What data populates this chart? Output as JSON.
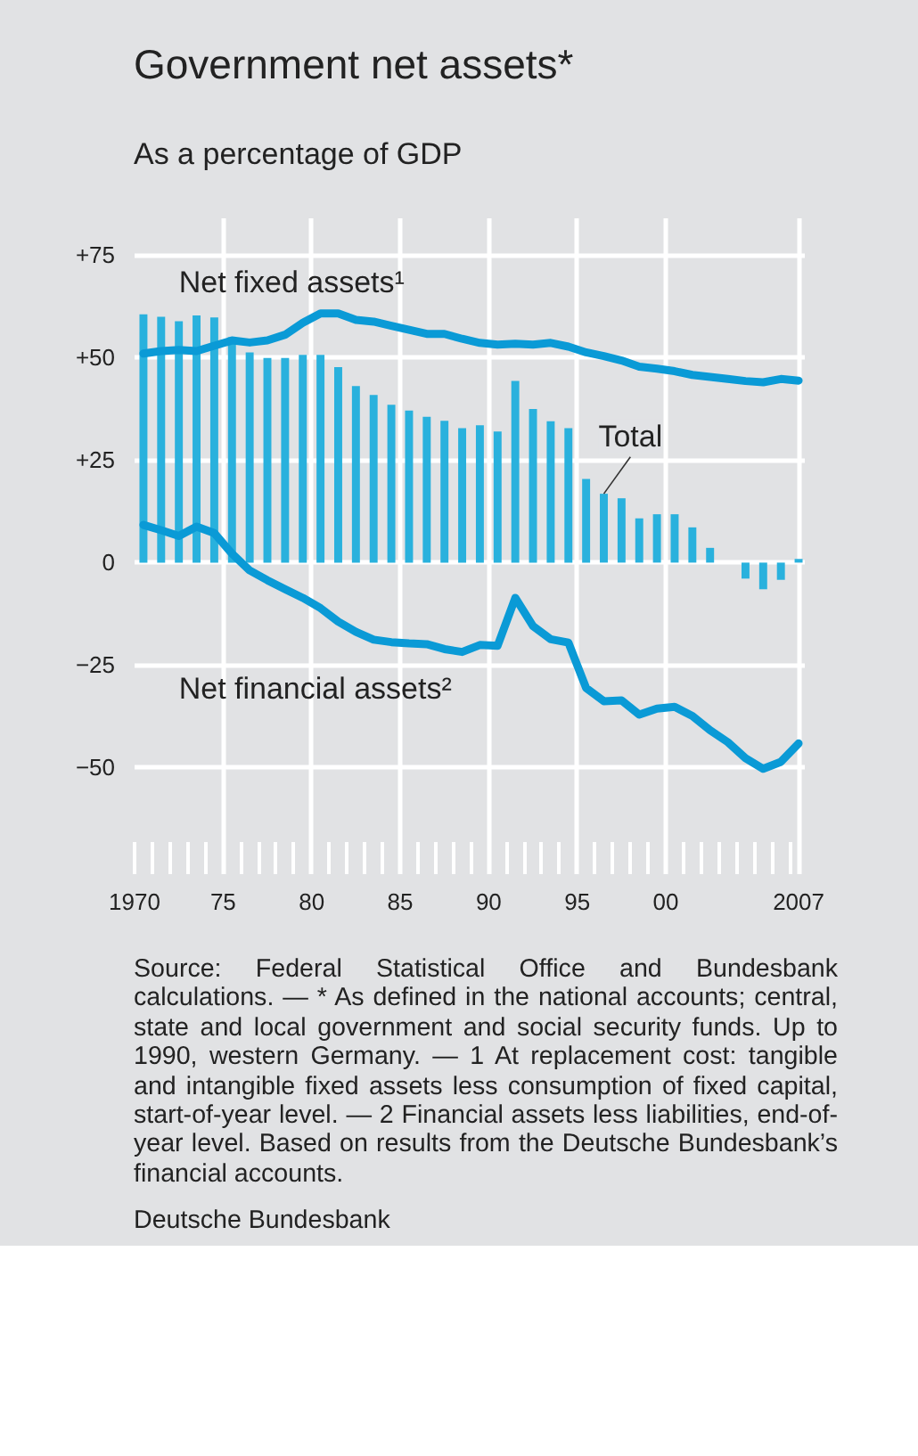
{
  "chart_data": {
    "type": "bar",
    "title": "Government net assets*",
    "subtitle": "As a percentage of GDP",
    "x": [
      1970.5,
      1971.5,
      1972.5,
      1973.5,
      1974.5,
      1975.5,
      1976.5,
      1977.5,
      1978.5,
      1979.5,
      1980.5,
      1981.5,
      1982.5,
      1983.5,
      1984.5,
      1985.5,
      1986.5,
      1987.5,
      1988.5,
      1989.5,
      1990.5,
      1991.5,
      1992.5,
      1993.5,
      1994.5,
      1995.5,
      1996.5,
      1997.5,
      1998.5,
      1999.5,
      2000.5,
      2001.5,
      2002.5,
      2003.5,
      2004.5,
      2005.5,
      2006.5,
      2007.5
    ],
    "series": [
      {
        "name": "Total",
        "color": "#29b1dd",
        "values": [
          60.6,
          60.0,
          58.9,
          60.3,
          59.8,
          55.0,
          51.3,
          49.9,
          49.9,
          50.7,
          50.7,
          47.7,
          43.1,
          40.9,
          38.5,
          37.1,
          35.6,
          34.6,
          32.8,
          33.5,
          32.0,
          44.3,
          37.5,
          34.5,
          32.8,
          20.4,
          16.8,
          15.7,
          10.8,
          11.8,
          11.8,
          8.6,
          3.6,
          null,
          -3.9,
          -6.5,
          -4.2,
          0.9
        ]
      },
      {
        "name": "Net fixed assets¹",
        "type": "line",
        "color": "#0a9ad6",
        "values": [
          51.0,
          51.6,
          51.9,
          51.6,
          52.9,
          54.2,
          53.7,
          54.2,
          55.6,
          58.5,
          60.8,
          60.8,
          59.2,
          58.8,
          57.8,
          56.8,
          55.8,
          55.8,
          54.6,
          53.6,
          53.2,
          53.4,
          53.2,
          53.6,
          52.7,
          51.3,
          50.4,
          49.3,
          47.8,
          47.3,
          46.7,
          45.8,
          45.3,
          44.8,
          44.3,
          44.0,
          44.8,
          44.4
        ]
      },
      {
        "name": "Net financial assets²",
        "type": "line",
        "color": "#0a9ad6",
        "values": [
          9.2,
          7.9,
          6.5,
          8.8,
          7.2,
          2.2,
          -1.9,
          -4.3,
          -6.5,
          -8.6,
          -11.1,
          -14.4,
          -16.9,
          -18.8,
          -19.4,
          -19.7,
          -19.9,
          -21.1,
          -21.8,
          -20.1,
          -20.3,
          -8.6,
          -15.5,
          -18.7,
          -19.5,
          -30.6,
          -33.8,
          -33.6,
          -37.1,
          -35.6,
          -35.2,
          -37.4,
          -40.9,
          -43.8,
          -47.7,
          -50.3,
          -48.6,
          -44.1
        ]
      }
    ],
    "xlim": [
      1970,
      2007.85
    ],
    "xticks": [
      {
        "value": 1970,
        "label": "1970"
      },
      {
        "value": 1975,
        "label": "75"
      },
      {
        "value": 1980,
        "label": "80"
      },
      {
        "value": 1985,
        "label": "85"
      },
      {
        "value": 1990,
        "label": "90"
      },
      {
        "value": 1995,
        "label": "95"
      },
      {
        "value": 2000,
        "label": "00"
      },
      {
        "value": 2007.5,
        "label": "2007"
      }
    ],
    "ylim": [
      -76,
      84
    ],
    "yticks": [
      {
        "value": 75,
        "label": "+75"
      },
      {
        "value": 50,
        "label": "+50"
      },
      {
        "value": 25,
        "label": "+25"
      },
      0,
      {
        "value": -25,
        "label": "−25"
      },
      {
        "value": -50,
        "label": "−50"
      }
    ],
    "grid": true,
    "annotations": [
      "Source: Federal Statistical Office and Bundesbank calculations. — * As defined in the national accounts; central, state and local government and social security funds. Up to 1990, western Germany. — 1 At replacement cost: tangible and intangible fixed assets less consumption of fixed capital, start-of-year level. — 2 Financial assets less liabilities, end-of-year level. Based on results from the Deutsche Bundesbank’s financial accounts.",
      "Deutsche Bundesbank"
    ]
  }
}
